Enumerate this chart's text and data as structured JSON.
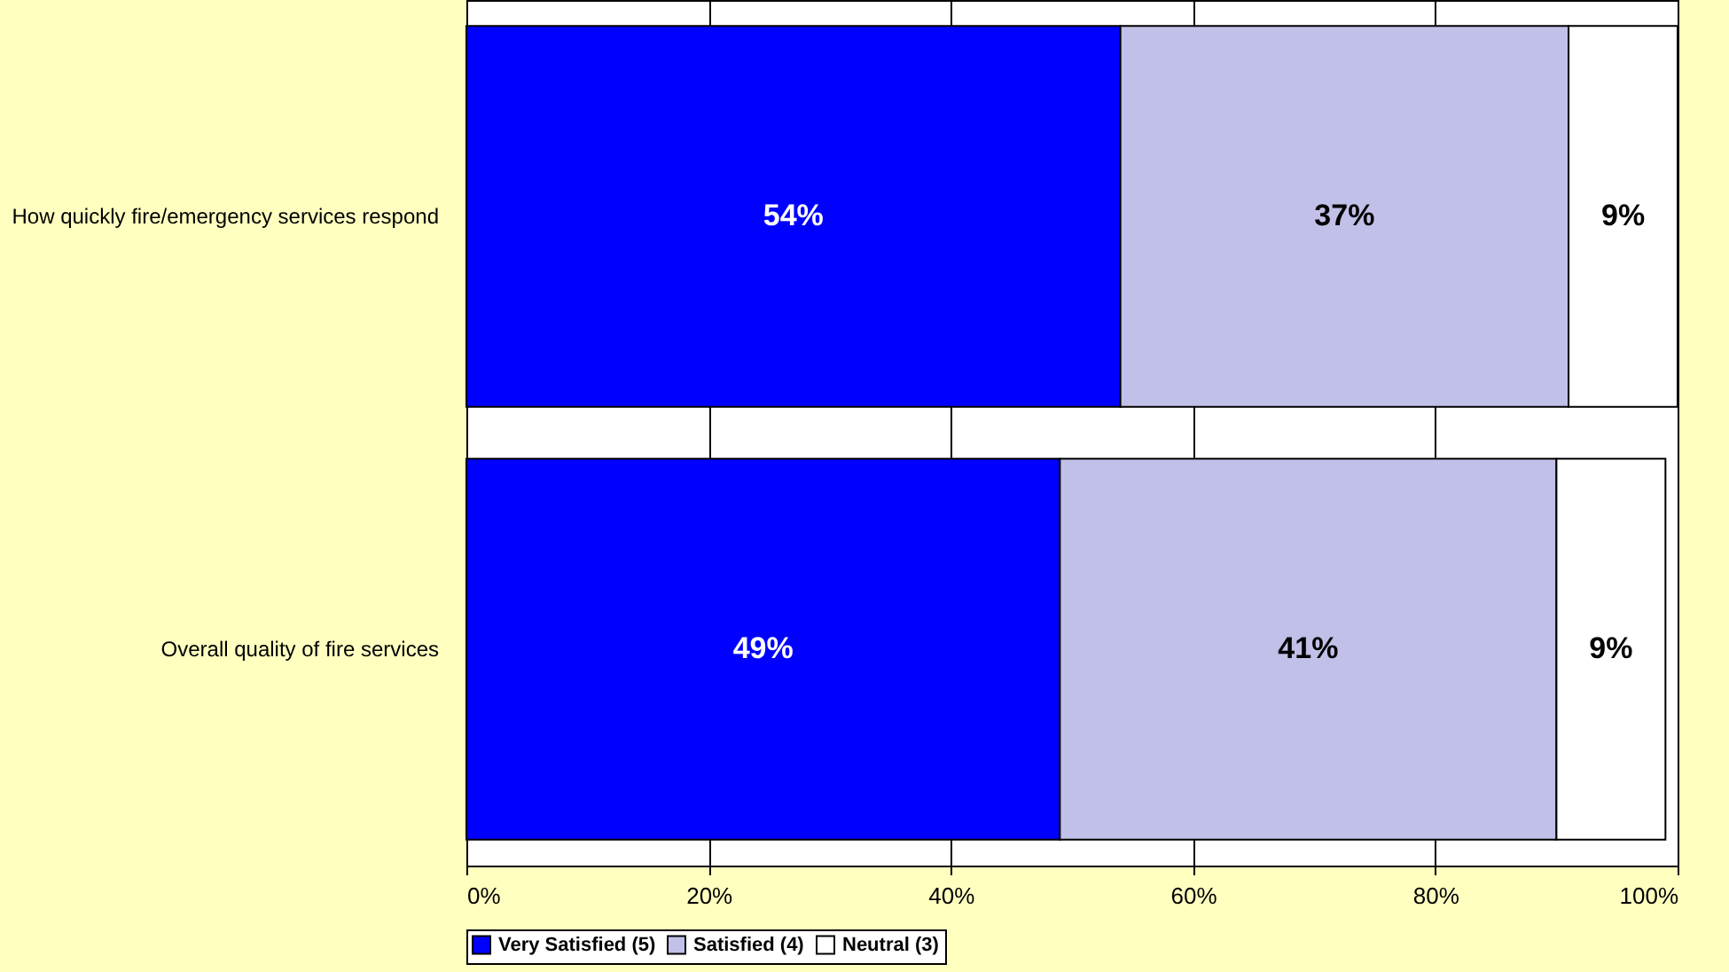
{
  "chart_data": {
    "type": "bar",
    "orientation": "horizontal",
    "stacked": true,
    "categories": [
      "How quickly fire/emergency services respond",
      "Overall quality of fire services"
    ],
    "series": [
      {
        "name": "Very Satisfied (5)",
        "color": "#0000ff",
        "values": [
          54,
          49
        ]
      },
      {
        "name": "Satisfied (4)",
        "color": "#c0c0e8",
        "values": [
          37,
          41
        ]
      },
      {
        "name": "Neutral (3)",
        "color": "#ffffff",
        "values": [
          9,
          9
        ]
      }
    ],
    "value_labels": [
      [
        "54%",
        "49%"
      ],
      [
        "37%",
        "41%"
      ],
      [
        "9%",
        "9%"
      ]
    ],
    "xlim": [
      0,
      100
    ],
    "xticks": [
      {
        "value": 0,
        "label": "0%"
      },
      {
        "value": 20,
        "label": "20%"
      },
      {
        "value": 40,
        "label": "40%"
      },
      {
        "value": 60,
        "label": "60%"
      },
      {
        "value": 80,
        "label": "80%"
      },
      {
        "value": 100,
        "label": "100%"
      }
    ],
    "grid": "x",
    "legend": "bottom"
  }
}
